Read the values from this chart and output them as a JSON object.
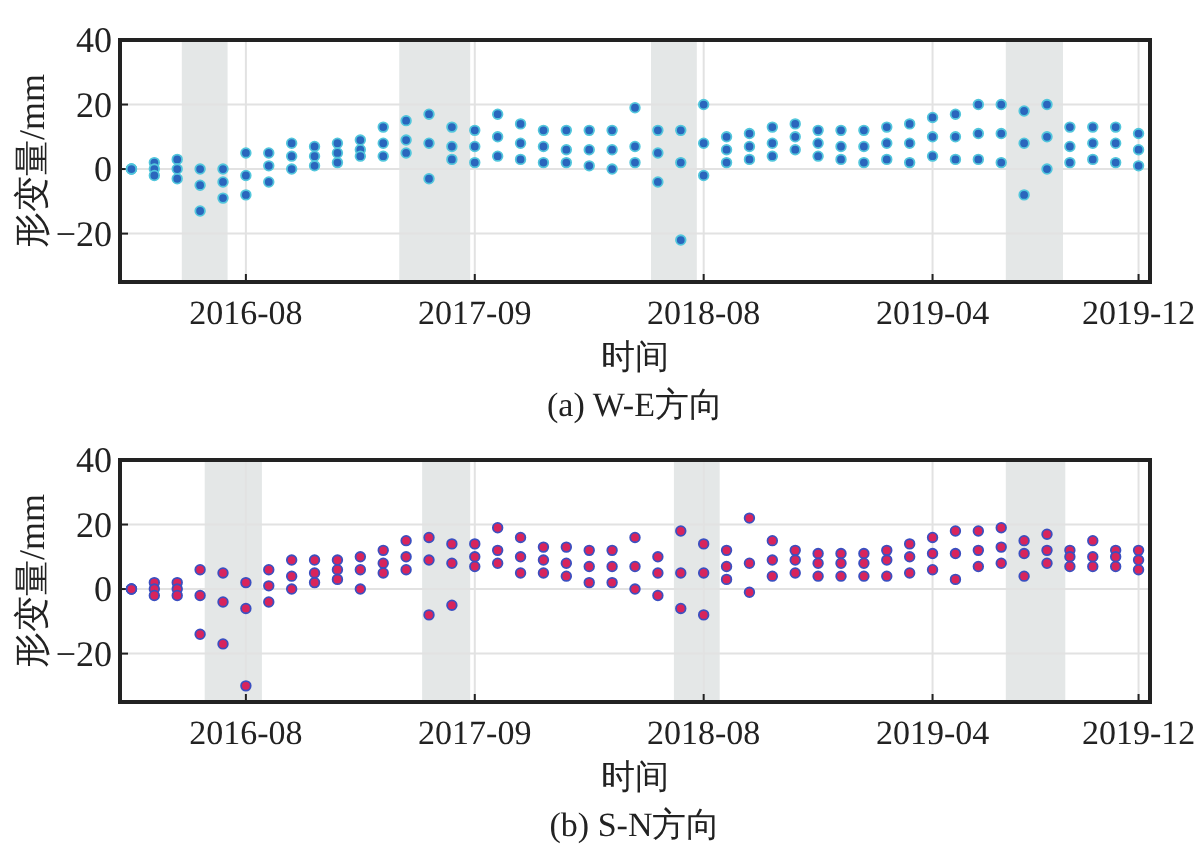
{
  "chart_data": [
    {
      "type": "scatter",
      "xlabel": "时间",
      "ylabel": "形变量/mm",
      "annotations": [
        "(a) W-E方向"
      ],
      "ylim": [
        -35,
        40
      ],
      "yticks": [
        {
          "value": -20,
          "label": "−20"
        },
        0,
        20,
        40
      ],
      "grid": true,
      "marker": "circle",
      "categories": [
        null,
        null,
        null,
        null,
        null,
        "2016-08",
        null,
        null,
        null,
        null,
        null,
        null,
        null,
        null,
        null,
        "2017-09",
        null,
        null,
        null,
        null,
        null,
        null,
        null,
        null,
        null,
        "2018-08",
        null,
        null,
        null,
        null,
        null,
        null,
        null,
        null,
        null,
        "2019-04",
        null,
        null,
        null,
        null,
        null,
        null,
        null,
        null,
        "2019-12"
      ],
      "series": [
        {
          "color": "#2a66bd",
          "values": [
            0,
            2,
            3,
            0,
            0,
            5,
            5,
            8,
            7,
            8,
            9,
            13,
            15,
            17,
            13,
            12,
            17,
            14,
            12,
            12,
            12,
            12,
            19,
            12,
            12,
            20,
            10,
            11,
            13,
            14,
            12,
            12,
            12,
            13,
            14,
            16,
            17,
            20,
            20,
            18,
            20,
            13,
            13,
            13,
            11
          ]
        },
        {
          "color": "#2a66bd",
          "values": [
            0,
            0,
            0,
            -5,
            -4,
            -2,
            1,
            4,
            4,
            5,
            6,
            8,
            9,
            8,
            7,
            7,
            10,
            8,
            7,
            6,
            6,
            6,
            7,
            5,
            2,
            8,
            6,
            7,
            8,
            10,
            8,
            7,
            7,
            8,
            8,
            10,
            10,
            11,
            11,
            8,
            10,
            7,
            8,
            8,
            6
          ]
        },
        {
          "color": "#2a66bd",
          "values": [
            0,
            -2,
            -3,
            -13,
            -9,
            -8,
            -4,
            0,
            1,
            2,
            4,
            4,
            5,
            -3,
            3,
            2,
            4,
            3,
            2,
            2,
            1,
            0,
            2,
            -4,
            -22,
            -2,
            2,
            3,
            4,
            6,
            4,
            3,
            2,
            3,
            2,
            4,
            3,
            3,
            2,
            -8,
            0,
            2,
            3,
            2,
            1
          ]
        }
      ]
    },
    {
      "type": "scatter",
      "xlabel": "时间",
      "ylabel": "形变量/mm",
      "annotations": [
        "(b) S-N方向"
      ],
      "ylim": [
        -35,
        40
      ],
      "yticks": [
        {
          "value": -20,
          "label": "−20"
        },
        0,
        20,
        40
      ],
      "grid": true,
      "marker": "circle",
      "categories": [
        null,
        null,
        null,
        null,
        null,
        "2016-08",
        null,
        null,
        null,
        null,
        null,
        null,
        null,
        null,
        null,
        "2017-09",
        null,
        null,
        null,
        null,
        null,
        null,
        null,
        null,
        null,
        "2018-08",
        null,
        null,
        null,
        null,
        null,
        null,
        null,
        null,
        null,
        "2019-04",
        null,
        null,
        null,
        null,
        null,
        null,
        null,
        null,
        "2019-12"
      ],
      "series": [
        {
          "color": "#d8245c",
          "values": [
            0,
            2,
            2,
            6,
            5,
            2,
            6,
            9,
            9,
            9,
            10,
            12,
            15,
            16,
            14,
            14,
            19,
            16,
            13,
            13,
            12,
            12,
            16,
            10,
            18,
            14,
            12,
            22,
            15,
            12,
            11,
            11,
            11,
            12,
            14,
            16,
            18,
            18,
            19,
            15,
            17,
            12,
            15,
            12,
            12
          ]
        },
        {
          "color": "#d8245c",
          "values": [
            0,
            0,
            0,
            -2,
            -4,
            -6,
            1,
            4,
            5,
            6,
            6,
            8,
            10,
            9,
            8,
            10,
            12,
            10,
            9,
            8,
            7,
            7,
            7,
            5,
            5,
            5,
            7,
            8,
            9,
            9,
            8,
            8,
            8,
            9,
            10,
            11,
            11,
            12,
            13,
            11,
            12,
            10,
            10,
            10,
            9
          ]
        },
        {
          "color": "#d8245c",
          "values": [
            0,
            -2,
            -2,
            -14,
            -17,
            -30,
            -4,
            0,
            2,
            3,
            0,
            5,
            6,
            -8,
            -5,
            7,
            8,
            5,
            5,
            4,
            2,
            2,
            0,
            -2,
            -6,
            -8,
            3,
            -1,
            4,
            5,
            4,
            4,
            4,
            4,
            5,
            6,
            3,
            7,
            8,
            4,
            8,
            7,
            7,
            7,
            6
          ]
        }
      ]
    }
  ]
}
